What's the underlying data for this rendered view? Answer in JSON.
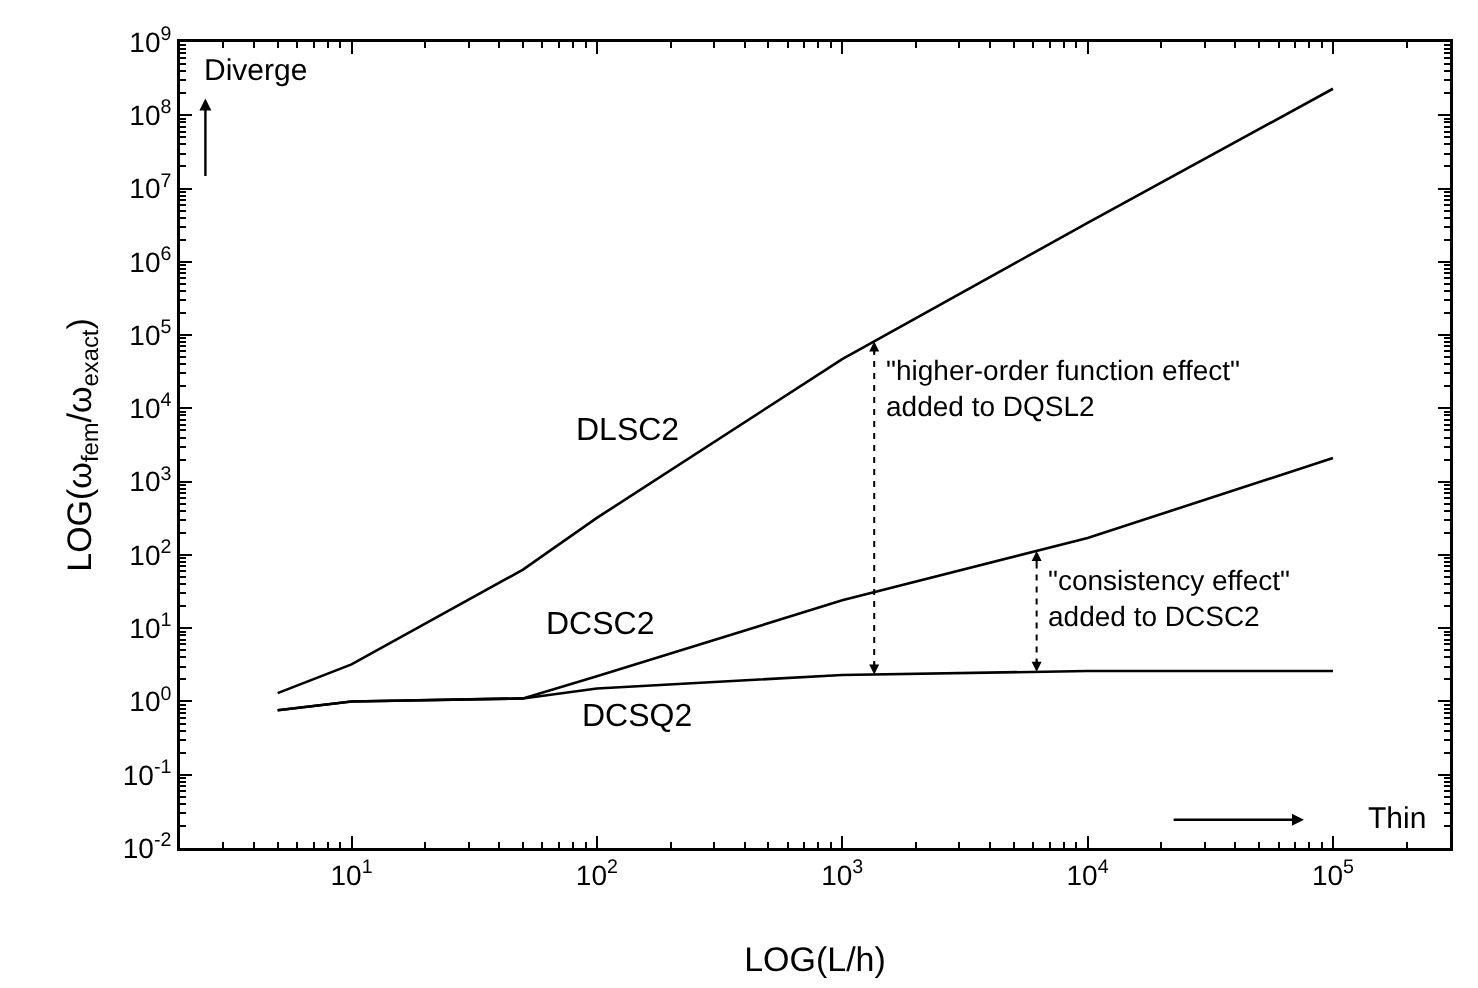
{
  "chart_data": {
    "type": "line",
    "xlabel": "LOG(L/h)",
    "ylabel": "LOG(ω$_{fem}$/ω$_{exact}$)",
    "log": "xy",
    "grid": false,
    "legend": false,
    "marker": "none",
    "line_style": "solid",
    "xlim": [
      2,
      300000
    ],
    "xticks": [
      {
        "value": 10,
        "label": "10$^{1}$"
      },
      {
        "value": 100,
        "label": "10$^{2}$"
      },
      {
        "value": 1000,
        "label": "10$^{3}$"
      },
      {
        "value": 10000,
        "label": "10$^{4}$"
      },
      {
        "value": 100000,
        "label": "10$^{5}$"
      }
    ],
    "ylim": [
      0.01,
      1000000000
    ],
    "yticks": [
      {
        "value": 0.01,
        "label": "10$^{-2}$"
      },
      {
        "value": 0.1,
        "label": "10$^{-1}$"
      },
      {
        "value": 1,
        "label": "10$^{0}$"
      },
      {
        "value": 10,
        "label": "10$^{1}$"
      },
      {
        "value": 100,
        "label": "10$^{2}$"
      },
      {
        "value": 1000,
        "label": "10$^{3}$"
      },
      {
        "value": 10000,
        "label": "10$^{4}$"
      },
      {
        "value": 100000,
        "label": "10$^{5}$"
      },
      {
        "value": 1000000,
        "label": "10$^{6}$"
      },
      {
        "value": 10000000,
        "label": "10$^{7}$"
      },
      {
        "value": 100000000,
        "label": "10$^{8}$"
      },
      {
        "value": 1000000000,
        "label": "10$^{9}$"
      }
    ],
    "x": [
      5,
      10,
      50,
      100,
      1000,
      10000,
      100000
    ],
    "series": [
      {
        "name": "DLSC2",
        "color": "#000000",
        "values": [
          1.3,
          3.2,
          63,
          320,
          47000,
          3400000,
          230000000
        ]
      },
      {
        "name": "DCSC2",
        "color": "#000000",
        "values": [
          0.76,
          1.0,
          1.1,
          2.2,
          24,
          170,
          2100
        ]
      },
      {
        "name": "DCSQ2",
        "color": "#000000",
        "values": [
          0.76,
          1.0,
          1.1,
          1.5,
          2.3,
          2.6,
          2.6
        ]
      }
    ],
    "annotations": [
      {
        "text": "\"higher-order function effect\"\nadded to DQSL2",
        "x": 1350,
        "y": 82000
      },
      {
        "text": "\"consistency effect\"\nadded to DCSC2",
        "x": 6200,
        "y": 113
      },
      "Diverge",
      "Thin"
    ]
  }
}
